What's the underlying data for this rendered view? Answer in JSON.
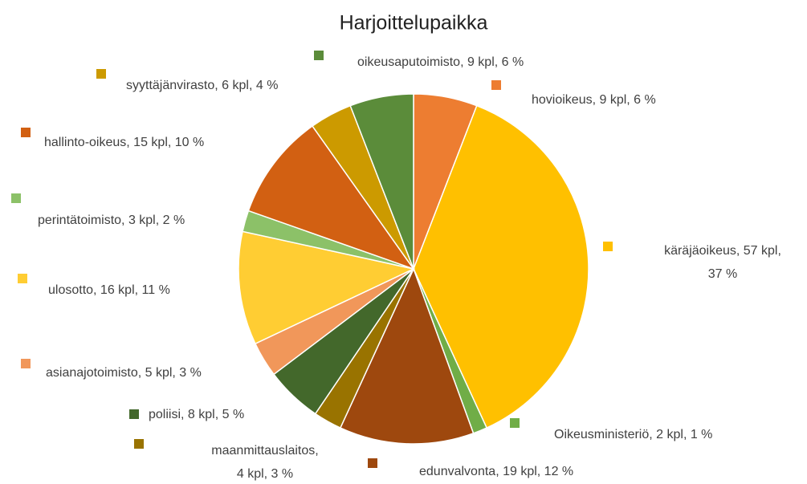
{
  "chart_data": {
    "type": "pie",
    "title": "Harjoittelupaikka",
    "values": [
      9,
      57,
      2,
      19,
      4,
      8,
      5,
      16,
      3,
      15,
      6,
      9
    ],
    "value_labels": [
      "hovioikeus, 9 kpl, 6 %",
      "käräjäoikeus, 57 kpl, 37 %",
      "Oikeusministeriö, 2 kpl, 1 %",
      "edunvalvonta, 19 kpl, 12 %",
      "maanmittauslaitos, 4 kpl, 3 %",
      "poliisi, 8 kpl, 5 %",
      "asianajotoimisto, 5 kpl, 3 %",
      "ulosotto, 16 kpl, 11 %",
      "perintätoimisto, 3 kpl, 2 %",
      "hallinto-oikeus, 15 kpl, 10 %",
      "syyttäjänvirasto, 6 kpl, 4 %",
      "oikeusaputoimisto, 9 kpl, 6 %"
    ],
    "colors": [
      "#ED7D31",
      "#FFC000",
      "#70AD47",
      "#9E480E",
      "#997300",
      "#43682B",
      "#F1975A",
      "#FFCD33",
      "#8CC168",
      "#D26012",
      "#CC9A00",
      "#5B8C3A"
    ]
  }
}
